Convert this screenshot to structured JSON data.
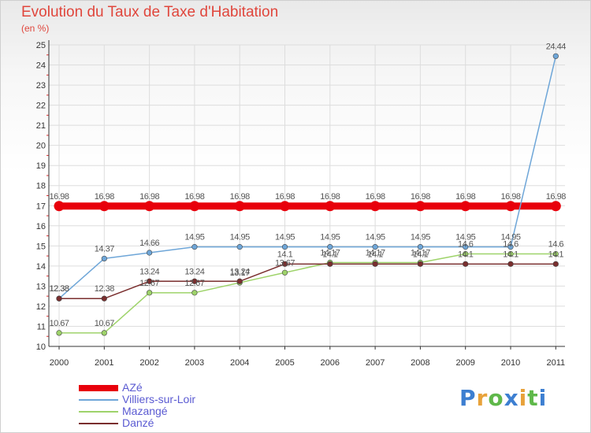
{
  "header": {
    "title": "Evolution du Taux de Taxe d'Habitation",
    "unit": "(en %)"
  },
  "brand": {
    "text": "Proxiti",
    "letter_colors": [
      "#3d7fd1",
      "#e8a23a",
      "#5fb84a",
      "#3d7fd1",
      "#e8a23a",
      "#5fb84a",
      "#3d7fd1"
    ]
  },
  "chart_data": {
    "type": "line",
    "title": "Evolution du Taux de Taxe d'Habitation",
    "ylabel": "(en %)",
    "xlabel": "",
    "x": [
      "2000",
      "2001",
      "2002",
      "2003",
      "2004",
      "2005",
      "2006",
      "2007",
      "2008",
      "2009",
      "2010",
      "2011"
    ],
    "ylim": [
      10,
      25
    ],
    "yticks": [
      10,
      11,
      12,
      13,
      14,
      15,
      16,
      17,
      18,
      19,
      20,
      21,
      22,
      23,
      24,
      25
    ],
    "grid": true,
    "legend_position": "bottom-left",
    "series": [
      {
        "name": "AZé",
        "color": "#e8000b",
        "values": [
          16.98,
          16.98,
          16.98,
          16.98,
          16.98,
          16.98,
          16.98,
          16.98,
          16.98,
          16.98,
          16.98,
          16.98
        ],
        "labels": [
          "16.98",
          "16.98",
          "16.98",
          "16.98",
          "16.98",
          "16.98",
          "16.98",
          "16.98",
          "16.98",
          "16.98",
          "16.98",
          "16.98"
        ]
      },
      {
        "name": "Villiers-sur-Loir",
        "color": "#6ea6d8",
        "values": [
          12.38,
          14.37,
          14.66,
          14.95,
          14.95,
          14.95,
          14.95,
          14.95,
          14.95,
          14.95,
          14.95,
          24.44
        ],
        "labels": [
          "12.38",
          "14.37",
          "14.66",
          "14.95",
          "14.95",
          "14.95",
          "14.95",
          "14.95",
          "14.95",
          "14.95",
          "14.95",
          "24.44"
        ]
      },
      {
        "name": "Mazangé",
        "color": "#9ed36a",
        "values": [
          10.67,
          10.67,
          12.67,
          12.67,
          13.17,
          13.67,
          14.17,
          14.17,
          14.17,
          14.6,
          14.6,
          14.6
        ],
        "labels": [
          "10.67",
          "10.67",
          "12.67",
          "12.67",
          "13.17",
          "13.67",
          "14.17",
          "14.17",
          "14.17",
          "14.6",
          "14.6",
          "14.6"
        ]
      },
      {
        "name": "Danzé",
        "color": "#7a2e2e",
        "values": [
          12.38,
          12.38,
          13.24,
          13.24,
          13.24,
          14.1,
          14.1,
          14.1,
          14.1,
          14.1,
          14.1,
          14.1
        ],
        "labels": [
          "12.38",
          "12.38",
          "13.24",
          "13.24",
          "13.24",
          "14.1",
          "14.1",
          "14.1",
          "14.1",
          "14.1",
          "14.1",
          "14.1"
        ]
      }
    ]
  }
}
